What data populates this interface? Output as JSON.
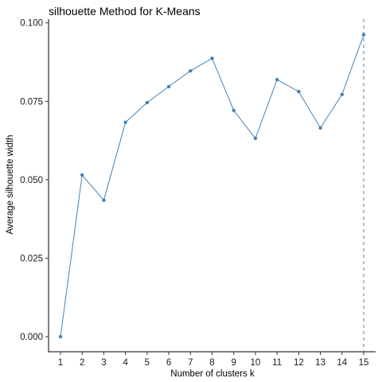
{
  "chart_data": {
    "type": "line",
    "title": "silhouette Method for K-Means",
    "xlabel": "Number of clusters k",
    "ylabel": "Average silhouette width",
    "categories": [
      "1",
      "2",
      "3",
      "4",
      "5",
      "6",
      "7",
      "8",
      "9",
      "10",
      "11",
      "12",
      "13",
      "14",
      "15"
    ],
    "series": [
      {
        "values": [
          0.0,
          0.0515,
          0.0435,
          0.0683,
          0.0746,
          0.0797,
          0.0847,
          0.0887,
          0.0721,
          0.0632,
          0.0819,
          0.0781,
          0.0665,
          0.0772,
          0.0962
        ]
      }
    ],
    "yticks": [
      0.0,
      0.025,
      0.05,
      0.075,
      0.1
    ],
    "ytick_labels": [
      "0.000",
      "0.025",
      "0.050",
      "0.075",
      "0.100"
    ],
    "ylim": [
      -0.0048,
      0.1012
    ],
    "optimal_k_line": 15,
    "grid": false,
    "legend": "none",
    "colors": {
      "line": "#4682b4",
      "point": "#4682b4",
      "axis": "#000000"
    }
  }
}
